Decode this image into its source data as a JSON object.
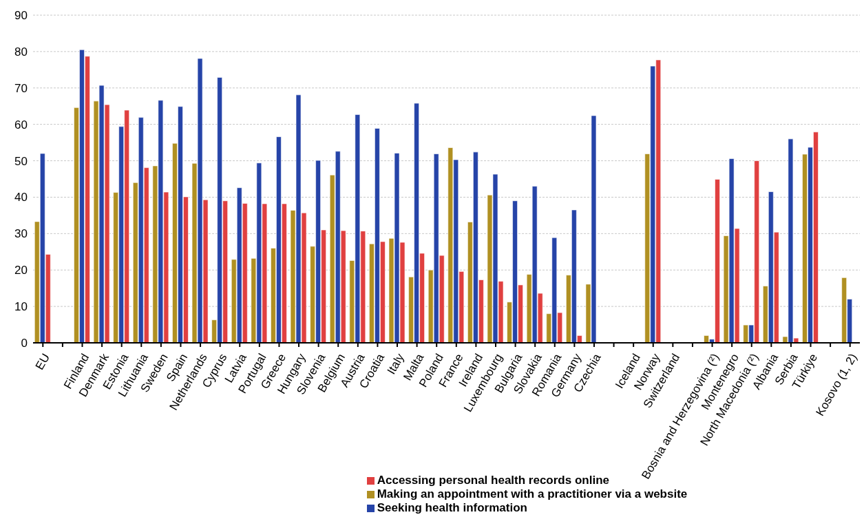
{
  "chart_data": {
    "type": "bar",
    "categories": [
      "EU",
      null,
      "Finland",
      "Denmark",
      "Estonia",
      "Lithuania",
      "Sweden",
      "Spain",
      "Netherlands",
      "Cyprus",
      "Latvia",
      "Portugal",
      "Greece",
      "Hungary",
      "Slovenia",
      "Belgium",
      "Austria",
      "Croatia",
      "Italy",
      "Malta",
      "Poland",
      "France",
      "Ireland",
      "Luxembourg",
      "Bulgaria",
      "Slovakia",
      "Romania",
      "Germany",
      "Czechia",
      null,
      "Iceland",
      "Norway",
      "Switzerland",
      null,
      "Bosnia and Herzegovina (²)",
      "Montenegro",
      "North Macedonia (²)",
      "Albania",
      "Serbia",
      "Türkiye",
      null,
      "Kosovo (1, 2)"
    ],
    "series": [
      {
        "name": "Making an appointment with a practitioner via a website",
        "color": "#b09022",
        "values": [
          33.3,
          null,
          64.6,
          66.4,
          41.3,
          44.0,
          48.6,
          54.8,
          49.3,
          6.3,
          22.9,
          23.2,
          26.0,
          36.4,
          26.5,
          46.1,
          22.6,
          27.2,
          28.7,
          18.1,
          20.0,
          53.6,
          33.2,
          40.6,
          11.2,
          18.8,
          8.0,
          18.6,
          16.1,
          null,
          null,
          51.9,
          null,
          null,
          2.0,
          29.4,
          4.9,
          15.6,
          1.7,
          51.8,
          null,
          17.9
        ]
      },
      {
        "name": "Seeking health information",
        "color": "#2644a8",
        "values": [
          52.0,
          null,
          80.5,
          70.7,
          59.4,
          61.9,
          66.6,
          64.9,
          78.1,
          72.9,
          42.6,
          49.4,
          56.6,
          68.1,
          50.1,
          52.6,
          62.7,
          58.9,
          52.1,
          65.8,
          51.9,
          50.3,
          52.4,
          46.3,
          39.0,
          43.0,
          28.9,
          36.5,
          62.4,
          null,
          null,
          76.0,
          null,
          null,
          1.0,
          50.6,
          4.9,
          41.5,
          56.0,
          53.7,
          null,
          12.0
        ]
      },
      {
        "name": "Accessing personal health records online",
        "color": "#e04040",
        "values": [
          24.3,
          null,
          78.7,
          65.4,
          63.9,
          48.1,
          41.4,
          40.1,
          39.3,
          39.0,
          38.3,
          38.2,
          38.2,
          35.7,
          31.0,
          30.8,
          30.7,
          27.8,
          27.6,
          24.6,
          24.0,
          19.6,
          17.3,
          16.9,
          15.9,
          13.6,
          8.3,
          2.0,
          null,
          null,
          null,
          77.7,
          null,
          null,
          44.9,
          31.4,
          50.0,
          30.4,
          1.3,
          57.9,
          null,
          null
        ]
      }
    ],
    "ylim": [
      0,
      90
    ],
    "yticks": [
      0,
      10,
      20,
      30,
      40,
      50,
      60,
      70,
      80,
      90
    ],
    "grid": "y",
    "legend": "bottom"
  }
}
